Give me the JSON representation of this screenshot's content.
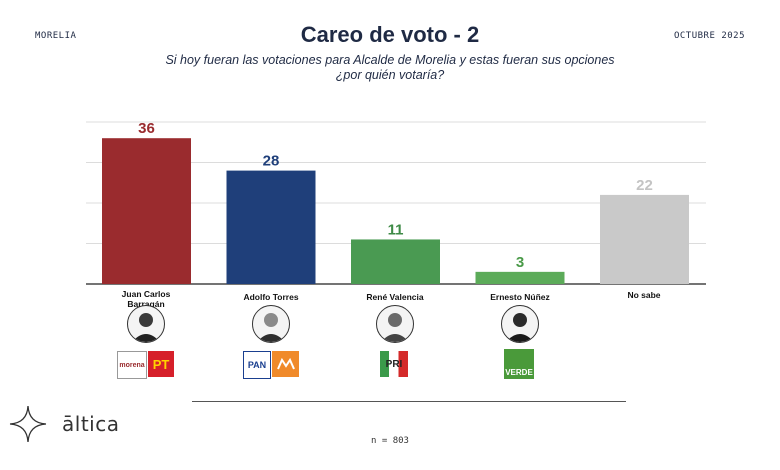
{
  "header": {
    "location": "MORELIA",
    "date": "OCTUBRE 2025",
    "title": "Careo de voto - 2",
    "subtitle_line1": "Si hoy fueran las votaciones para Alcalde de Morelia y estas fueran sus opciones",
    "subtitle_line2": "¿por quién votaría?"
  },
  "colors": {
    "morena": "#9a2b2e",
    "pan": "#1f3f7a",
    "pri": "#4a9a52",
    "verde": "#5cab59",
    "no_sabe": "#c9c9c9"
  },
  "chart_data": {
    "type": "bar",
    "categories": [
      "Juan Carlos Barragán",
      "Adolfo Torres",
      "René Valencia",
      "Ernesto Núñez",
      "No sabe"
    ],
    "values": [
      36,
      28,
      11,
      3,
      22
    ],
    "value_labels": [
      "36",
      "28",
      "11",
      "3",
      "22"
    ],
    "title": "Careo de voto - 2",
    "xlabel": "",
    "ylabel": "",
    "ylim": [
      0,
      40
    ],
    "grid": true,
    "legend": "none"
  },
  "candidates": [
    {
      "line1": "Juan Carlos",
      "line2": "Barragán",
      "parties": [
        "morena",
        "PT"
      ]
    },
    {
      "line1": "Adolfo Torres",
      "line2": "",
      "parties": [
        "PAN",
        "MC"
      ]
    },
    {
      "line1": "René Valencia",
      "line2": "",
      "parties": [
        "PRI"
      ]
    },
    {
      "line1": "Ernesto Núñez",
      "line2": "",
      "parties": [
        "VERDE"
      ]
    },
    {
      "line1": "No sabe",
      "line2": "",
      "parties": []
    }
  ],
  "footer": {
    "brand": "āltica",
    "sample": "n = 803"
  }
}
